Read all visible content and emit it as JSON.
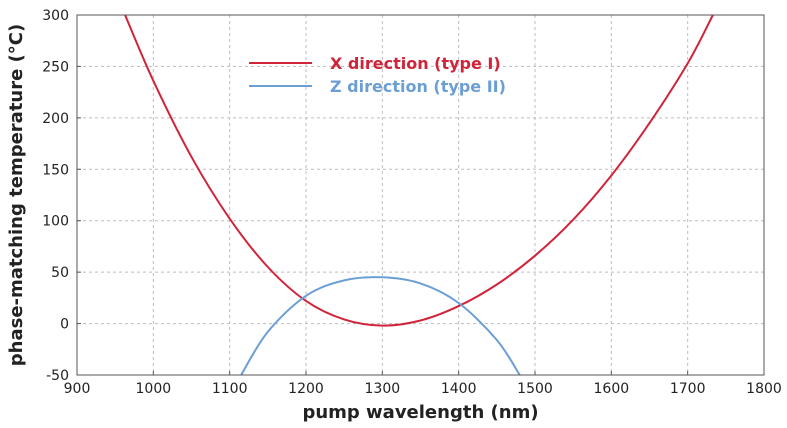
{
  "chart_data": {
    "type": "line",
    "title": "",
    "xlabel": "pump wavelength (nm)",
    "ylabel": "phase-matching temperature (°C)",
    "xlim": [
      900,
      1800
    ],
    "ylim": [
      -50,
      300
    ],
    "xticks": [
      900,
      1000,
      1100,
      1200,
      1300,
      1400,
      1500,
      1600,
      1700,
      1800
    ],
    "yticks": [
      -50,
      0,
      50,
      100,
      150,
      200,
      250,
      300
    ],
    "grid": true,
    "legend_position": "top-center",
    "series": [
      {
        "name": "X direction (type I)",
        "color": "#d0243a",
        "x": [
          963,
          1000,
          1050,
          1100,
          1150,
          1200,
          1250,
          1300,
          1350,
          1400,
          1450,
          1500,
          1550,
          1600,
          1650,
          1700,
          1733
        ],
        "y": [
          300,
          236,
          162,
          102,
          55,
          22,
          4,
          -2,
          3,
          17,
          38,
          66,
          101,
          144,
          195,
          253,
          300
        ]
      },
      {
        "name": "Z direction (type II)",
        "color": "#6b9fd4",
        "x": [
          1115,
          1150,
          1200,
          1250,
          1300,
          1350,
          1400,
          1450,
          1480
        ],
        "y": [
          -50,
          -8,
          27,
          42,
          45,
          39,
          20,
          -16,
          -50
        ]
      }
    ]
  }
}
